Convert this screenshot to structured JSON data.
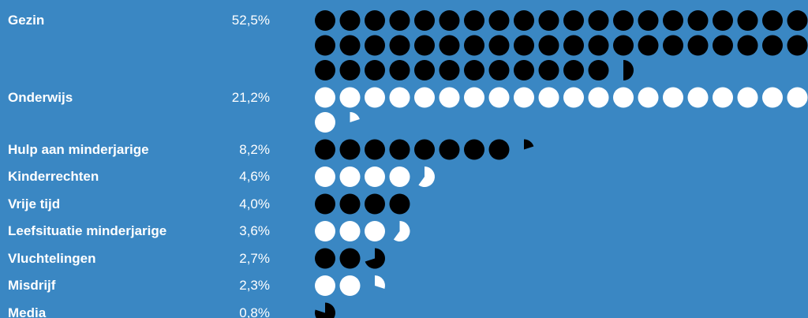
{
  "colors": {
    "background": "#3a87c3",
    "dark": "#000000",
    "light": "#ffffff",
    "text": "#ffffff"
  },
  "chart_data": {
    "type": "bar",
    "title": "",
    "xlabel": "",
    "ylabel": "",
    "unit": "%",
    "per_dot_percent": 1,
    "dots_per_row": 20,
    "categories": [
      "Gezin",
      "Onderwijs",
      "Hulp aan minderjarige",
      "Kinderrechten",
      "Vrije tijd",
      "Leefsituatie minderjarige",
      "Vluchtelingen",
      "Misdrijf",
      "Media"
    ],
    "values": [
      52.5,
      21.2,
      8.2,
      4.6,
      4.0,
      3.6,
      2.7,
      2.3,
      0.8
    ],
    "value_labels": [
      "52,5%",
      "21,2%",
      "8,2%",
      "4,6%",
      "4,0%",
      "3,6%",
      "2,7%",
      "2,3%",
      "0,8%"
    ],
    "dot_colors": [
      "dark",
      "light",
      "dark",
      "light",
      "dark",
      "light",
      "dark",
      "light",
      "dark"
    ]
  }
}
